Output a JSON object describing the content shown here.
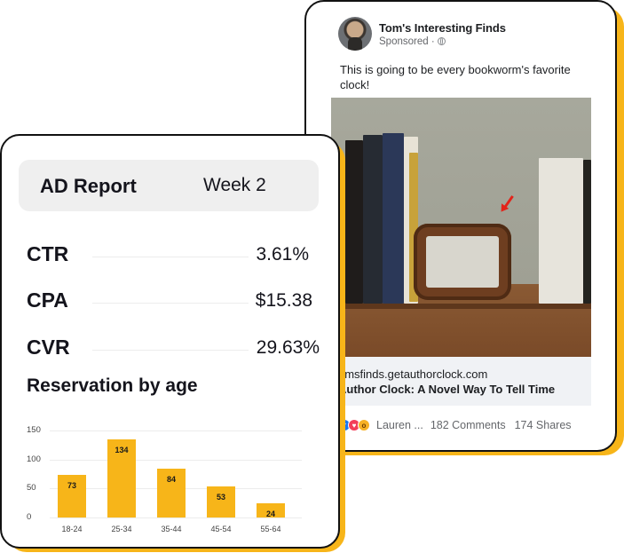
{
  "fb_post": {
    "page_name": "Tom's Interesting Finds",
    "sponsored": "Sponsored ·",
    "body_text": "This is going to be every bookworm's favorite clock!",
    "link_domain": "omsfinds.getauthorclock.com",
    "link_headline": "Author Clock: A Novel Way To Tell Time",
    "reaction_names": "Lauren ...",
    "comments": "182 Comments",
    "shares": "174 Shares",
    "reaction_icons": [
      "like-icon",
      "love-icon",
      "wow-icon"
    ]
  },
  "ad_report": {
    "title": "AD Report",
    "week": "Week 2",
    "metrics": [
      {
        "label": "CTR",
        "value": "3.61%"
      },
      {
        "label": "CPA",
        "value": "$15.38"
      },
      {
        "label": "CVR",
        "value": "29.63%"
      }
    ],
    "section_title": "Reservation by age"
  },
  "colors": {
    "accent": "#f7b519",
    "card_border": "#111111",
    "header_bg": "#efefef"
  },
  "chart_data": {
    "type": "bar",
    "categories": [
      "18-24",
      "25-34",
      "35-44",
      "45-54",
      "55-64"
    ],
    "values": [
      73,
      134,
      84,
      53,
      24
    ],
    "yticks": [
      0,
      50,
      100,
      150
    ],
    "ylim": [
      0,
      150
    ],
    "title": "Reservation by age",
    "xlabel": "",
    "ylabel": "",
    "grid": true
  }
}
